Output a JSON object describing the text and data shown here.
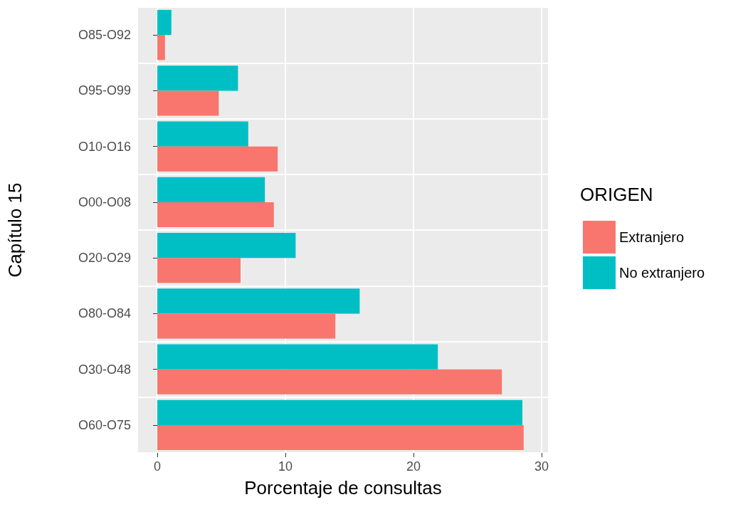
{
  "chart_data": {
    "type": "bar",
    "orientation": "horizontal",
    "xlabel": "Porcentaje de consultas",
    "ylabel": "Capítulo 15",
    "legend_title": "ORIGEN",
    "legend": "right",
    "grid": true,
    "categories": [
      "O85-O92",
      "O95-O99",
      "O10-O16",
      "O00-O08",
      "O20-O29",
      "O80-O84",
      "O30-O48",
      "O60-O75"
    ],
    "series": [
      {
        "name": "Extranjero",
        "color": "#f8766d",
        "values": [
          0.6,
          4.8,
          9.4,
          9.1,
          6.5,
          13.9,
          26.9,
          28.6
        ]
      },
      {
        "name": "No extranjero",
        "color": "#00bfc4",
        "values": [
          1.1,
          6.3,
          7.1,
          8.4,
          10.8,
          15.8,
          21.9,
          28.5
        ]
      }
    ],
    "xlim": [
      -1.5,
      30.5
    ],
    "xticks": [
      0,
      10,
      20,
      30
    ]
  }
}
